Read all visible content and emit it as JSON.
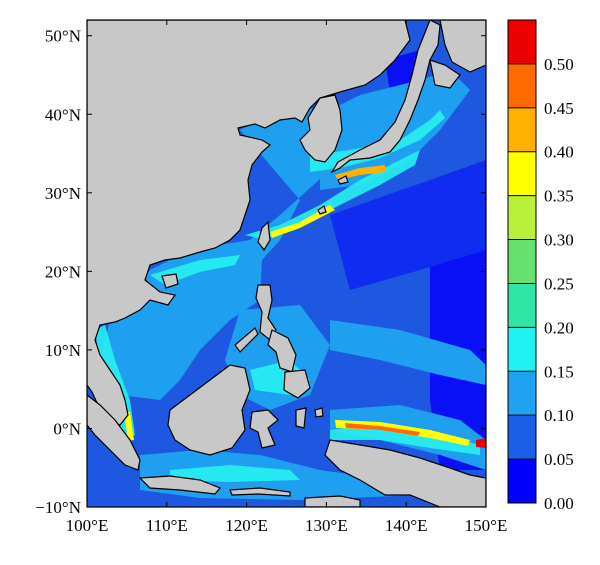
{
  "map": {
    "x_ticks": [
      "100°E",
      "110°E",
      "120°E",
      "130°E",
      "140°E",
      "150°E"
    ],
    "y_ticks": [
      "50°N",
      "40°N",
      "30°N",
      "20°N",
      "10°N",
      "0°N",
      "−10°N"
    ],
    "lon_range": [
      100,
      150
    ],
    "lat_range": [
      -10,
      52
    ],
    "land_color": "#c8c8c8",
    "ocean_background_color": "#1f5fe0"
  },
  "colorbar": {
    "levels": [
      "0.00",
      "0.05",
      "0.10",
      "0.15",
      "0.20",
      "0.25",
      "0.30",
      "0.35",
      "0.40",
      "0.45",
      "0.50"
    ],
    "colors": [
      "#0000ff",
      "#1a5fe6",
      "#1fa2f0",
      "#20f2f2",
      "#2ee6a6",
      "#66e070",
      "#b8f03a",
      "#ffff00",
      "#ffb000",
      "#ff6a00",
      "#ee0000"
    ]
  }
}
